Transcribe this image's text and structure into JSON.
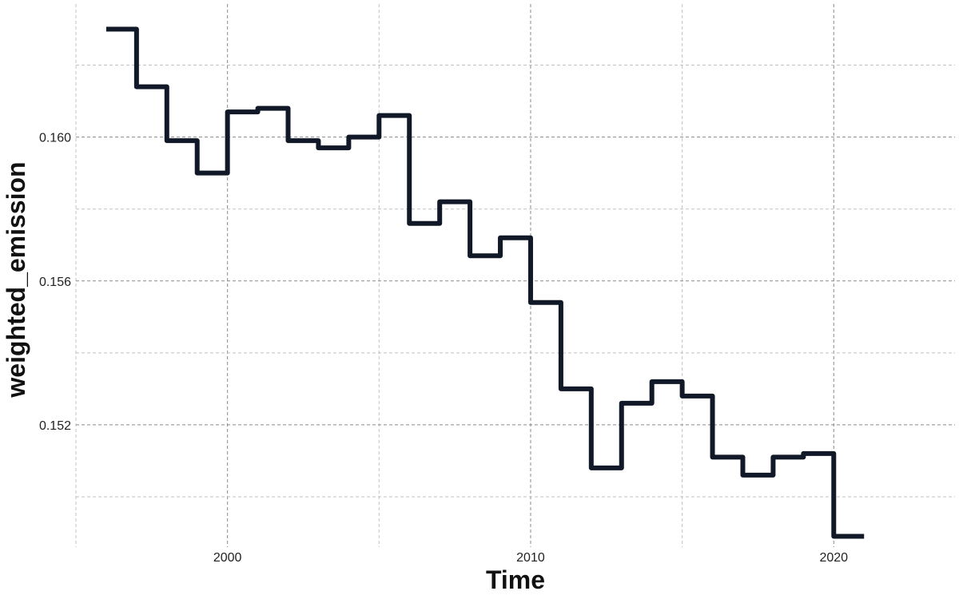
{
  "chart_data": {
    "type": "line",
    "step": true,
    "xlabel": "Time",
    "ylabel": "weighted_emission",
    "x_ticks": [
      2000,
      2010,
      2020
    ],
    "x_tick_labels": [
      "2000",
      "2010",
      "2020"
    ],
    "y_ticks": [
      0.152,
      0.156,
      0.16
    ],
    "y_tick_labels": [
      "0.152",
      "0.156",
      "0.160"
    ],
    "xlim": [
      1995,
      2024
    ],
    "ylim": [
      0.1486,
      0.1637
    ],
    "grid": true,
    "legend": "none",
    "line_color": "#111827",
    "series": [
      {
        "x": [
          1996,
          1997,
          1998,
          1999,
          2000,
          2001,
          2002,
          2003,
          2004,
          2005,
          2006,
          2007,
          2008,
          2009,
          2010,
          2011,
          2012,
          2013,
          2014,
          2015,
          2016,
          2017,
          2018,
          2019,
          2020,
          2021
        ],
        "y": [
          0.163,
          0.1614,
          0.1599,
          0.159,
          0.1607,
          0.1608,
          0.1599,
          0.1597,
          0.16,
          0.1606,
          0.1576,
          0.1582,
          0.1567,
          0.1572,
          0.1554,
          0.153,
          0.1508,
          0.1526,
          0.1532,
          0.1528,
          0.1511,
          0.1506,
          0.1511,
          0.1512,
          0.1489,
          0.1489
        ]
      }
    ]
  }
}
